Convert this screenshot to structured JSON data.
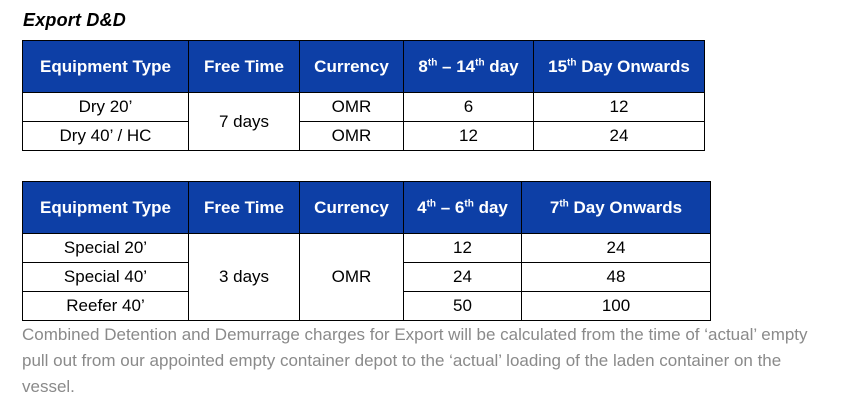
{
  "title": "Export D&D",
  "table1": {
    "headers": {
      "equipment_type": "Equipment Type",
      "free_time": "Free Time",
      "currency": "Currency",
      "col4_start": "8",
      "col4_start_sup": "th",
      "col4_dash": " – 14",
      "col4_end_sup": "th",
      "col4_suffix": " day",
      "col5_num": "15",
      "col5_sup": "th",
      "col5_suffix": " Day Onwards"
    },
    "free_time_value": "7 days",
    "rows": [
      {
        "equipment": "Dry 20’",
        "currency": "OMR",
        "rate1": "6",
        "rate2": "12"
      },
      {
        "equipment": "Dry 40’ / HC",
        "currency": "OMR",
        "rate1": "12",
        "rate2": "24"
      }
    ]
  },
  "table2": {
    "headers": {
      "equipment_type": "Equipment Type",
      "free_time": "Free Time",
      "currency": "Currency",
      "col4_start": "4",
      "col4_start_sup": "th",
      "col4_dash": " – 6",
      "col4_end_sup": "th",
      "col4_suffix": " day",
      "col5_num": "7",
      "col5_sup": "th",
      "col5_suffix": " Day Onwards"
    },
    "free_time_value": "3 days",
    "currency_value": "OMR",
    "rows": [
      {
        "equipment": "Special 20’",
        "rate1": "12",
        "rate2": "24"
      },
      {
        "equipment": "Special 40’",
        "rate1": "24",
        "rate2": "48"
      },
      {
        "equipment": "Reefer 40’",
        "rate1": "50",
        "rate2": "100"
      }
    ]
  },
  "note": "Combined Detention and Demurrage charges for Export will be calculated from the time of ‘actual’ empty pull out from our appointed empty container depot to the ‘actual’ loading of the laden container on the vessel.",
  "colors": {
    "header_bg": "#0d3fa6",
    "header_text": "#ffffff",
    "note_text": "#8a8a8a"
  }
}
